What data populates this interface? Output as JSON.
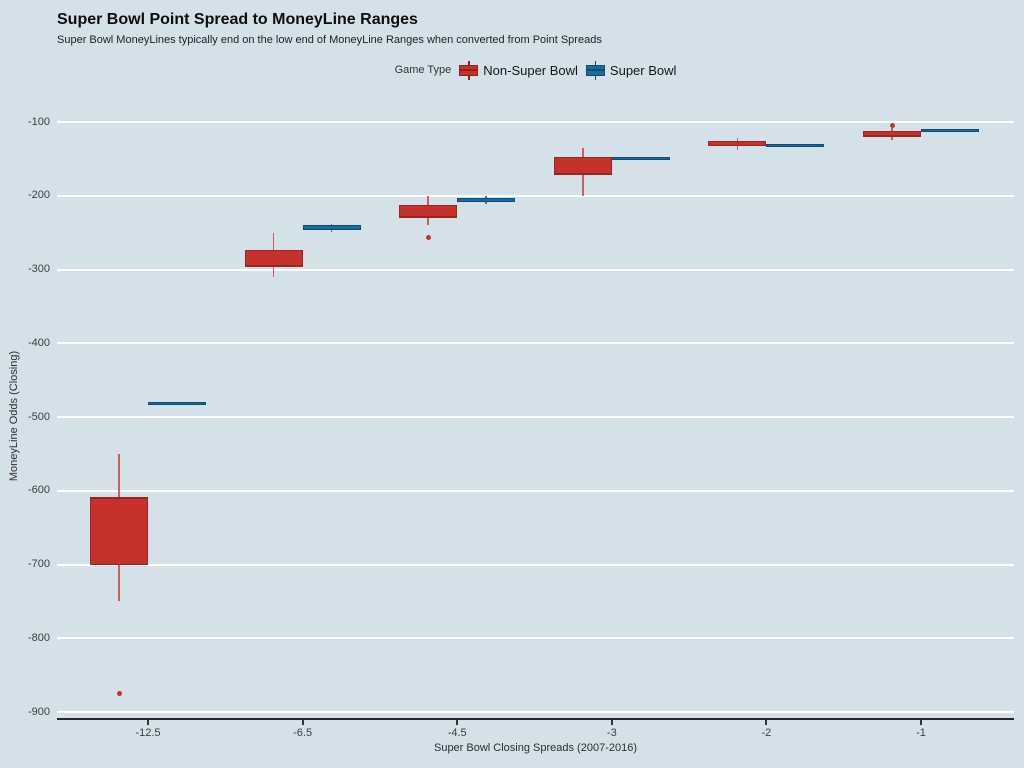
{
  "colors": {
    "background": "#d4e1e9",
    "gridline": "#ffffff",
    "axis_line": "#262626",
    "non_super_bowl_red": "#c5312b",
    "super_bowl_blue": "#1a6b9e"
  },
  "legend": {
    "title": "Game Type",
    "items": [
      {
        "label": "Non-Super Bowl",
        "color": "#c5312b",
        "stroke": "#8e231d"
      },
      {
        "label": "Super Bowl",
        "color": "#1a6b9e",
        "stroke": "#0f4b72"
      }
    ]
  },
  "chart_data": {
    "type": "boxplot",
    "orientation": "vertical",
    "title": "Super Bowl Point Spread to MoneyLine Ranges",
    "subtitle": "Super Bowl MoneyLines typically end on the low end of MoneyLine Ranges when converted from Point Spreads",
    "x_axis_label": "Super Bowl Closing Spreads (2007-2016)",
    "y_axis_label": "MoneyLine Odds (Closing)",
    "categories": [
      "-12.5",
      "-6.5",
      "-4.5",
      "-3",
      "-2",
      "-1"
    ],
    "ylim": [
      -900,
      -100
    ],
    "yticks": [
      -100,
      -200,
      -300,
      -400,
      -500,
      -600,
      -700,
      -800,
      -900
    ],
    "grid": "horizontal-major-only",
    "legend_position": "top-center",
    "series": [
      {
        "name": "Non-Super Bowl",
        "color": "#c5312b",
        "stroke": "#9c251f",
        "whisker": "rgba(197,49,43,0.75)",
        "boxes": [
          {
            "category": "-12.5",
            "low": -750,
            "q1": -700,
            "median": -610,
            "q3": -610,
            "high": -550,
            "outliers": [
              -875
            ]
          },
          {
            "category": "-6.5",
            "low": -310,
            "q1": -295,
            "median": -295,
            "q3": -273,
            "high": -250,
            "outliers": []
          },
          {
            "category": "-4.5",
            "low": -240,
            "q1": -229,
            "median": -229,
            "q3": -212,
            "high": -201,
            "outliers": [
              -256
            ]
          },
          {
            "category": "-3",
            "low": -200,
            "q1": -171,
            "median": -171,
            "q3": -148,
            "high": -135,
            "outliers": []
          },
          {
            "category": "-2",
            "low": -138,
            "q1": -132,
            "median": -132,
            "q3": -126,
            "high": -122,
            "outliers": []
          },
          {
            "category": "-1",
            "low": -125,
            "q1": -119,
            "median": -119,
            "q3": -112,
            "high": -108,
            "outliers": [
              -105
            ]
          }
        ]
      },
      {
        "name": "Super Bowl",
        "color": "#1a6b9e",
        "stroke": "#0f4b72",
        "whisker": "rgba(26,107,158,0.85)",
        "boxes": [
          {
            "category": "-12.5",
            "low": -480,
            "q1": -480,
            "median": -480,
            "q3": -480,
            "high": -480,
            "outliers": []
          },
          {
            "category": "-6.5",
            "low": -249,
            "q1": -246,
            "median": -243,
            "q3": -240,
            "high": -238,
            "outliers": []
          },
          {
            "category": "-4.5",
            "low": -211,
            "q1": -209,
            "median": -206,
            "q3": -203,
            "high": -201,
            "outliers": []
          },
          {
            "category": "-3",
            "low": -148,
            "q1": -148,
            "median": -148,
            "q3": -148,
            "high": -148,
            "outliers": []
          },
          {
            "category": "-2",
            "low": -130,
            "q1": -130,
            "median": -130,
            "q3": -130,
            "high": -130,
            "outliers": []
          },
          {
            "category": "-1",
            "low": -109,
            "q1": -109,
            "median": -109,
            "q3": -109,
            "high": -109,
            "outliers": []
          }
        ]
      }
    ]
  }
}
